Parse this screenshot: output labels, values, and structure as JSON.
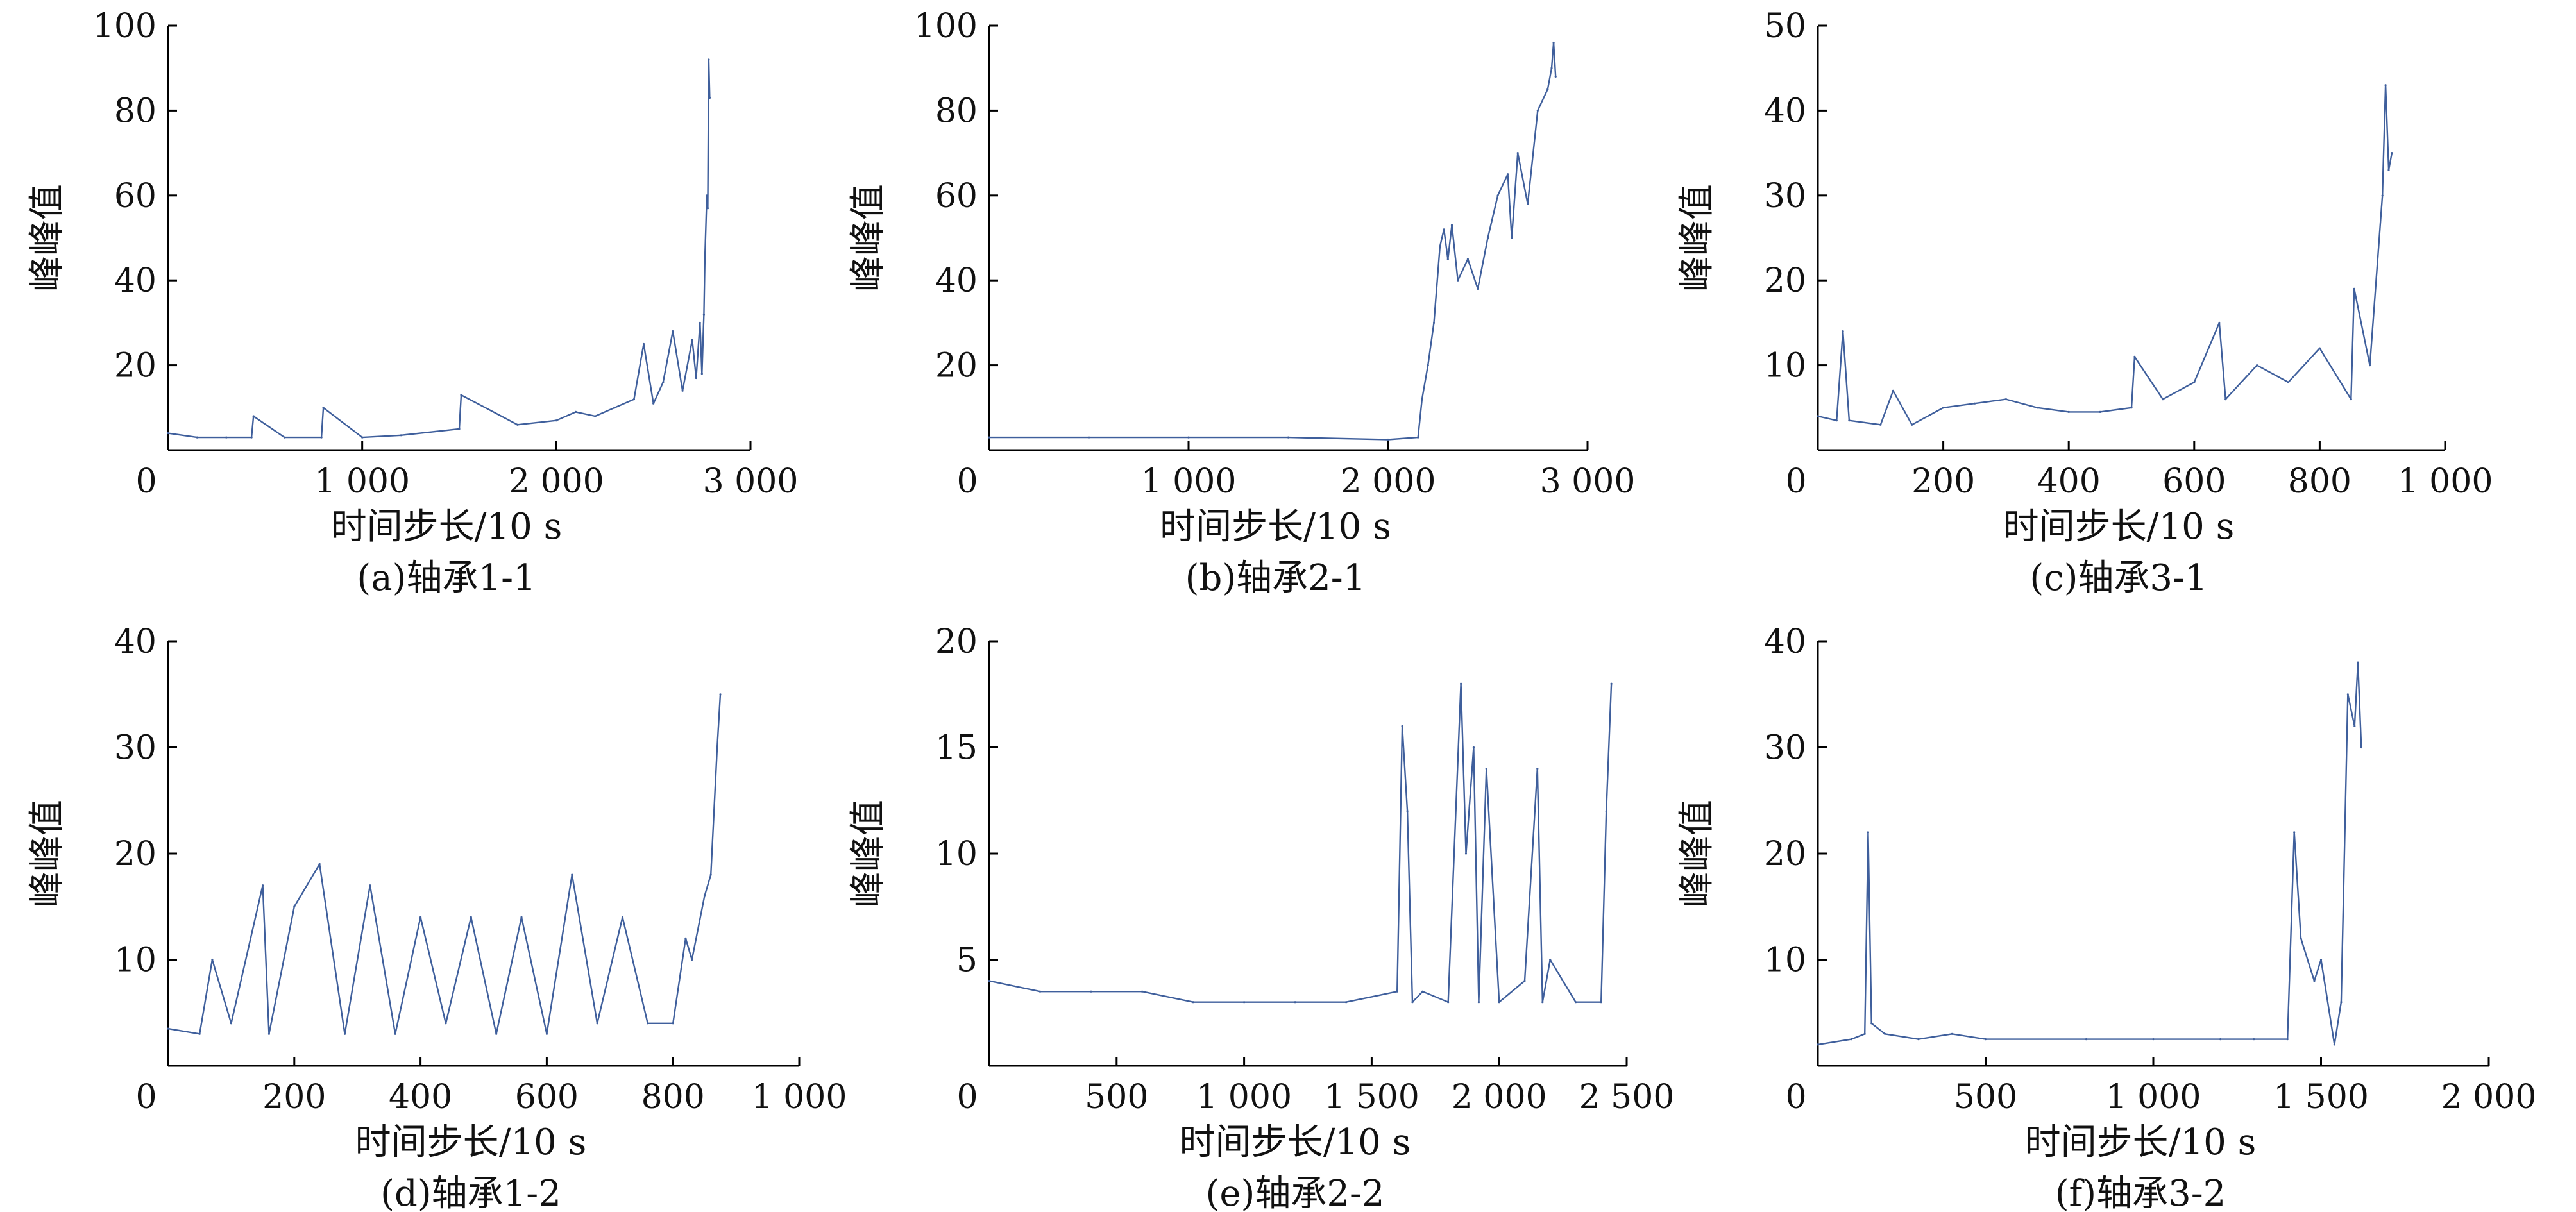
{
  "figure": {
    "panels": [
      {
        "caption": "(a)轴承1-1",
        "xlabel": "时间步长/10 s",
        "ylabel": "峰峰值"
      },
      {
        "caption": "(b)轴承2-1",
        "xlabel": "时间步长/10 s",
        "ylabel": "峰峰值"
      },
      {
        "caption": "(c)轴承3-1",
        "xlabel": "时间步长/10 s",
        "ylabel": "峰峰值"
      },
      {
        "caption": "(d)轴承1-2",
        "xlabel": "时间步长/10 s",
        "ylabel": "峰峰值"
      },
      {
        "caption": "(e)轴承2-2",
        "xlabel": "时间步长/10 s",
        "ylabel": "峰峰值"
      },
      {
        "caption": "(f)轴承3-2",
        "xlabel": "时间步长/10 s",
        "ylabel": "峰峰值"
      }
    ]
  },
  "chart_data": [
    {
      "type": "line",
      "caption": "(a)轴承1-1",
      "xlabel": "时间步长/10 s",
      "ylabel": "峰峰值",
      "xlim": [
        0,
        3000
      ],
      "ylim": [
        0,
        100
      ],
      "xticks": [
        0,
        1000,
        2000,
        3000
      ],
      "xtick_labels": [
        "0",
        "1 000",
        "2 000",
        "3 000"
      ],
      "yticks": [
        20,
        40,
        60,
        80,
        100
      ],
      "ytick_labels": [
        "20",
        "40",
        "60",
        "80",
        "100"
      ],
      "color": "#3f5f9c",
      "series": [
        {
          "x": [
            0,
            150,
            300,
            430,
            440,
            600,
            790,
            800,
            1000,
            1200,
            1500,
            1510,
            1800,
            2000,
            2100,
            2200,
            2300,
            2400,
            2450,
            2500,
            2550,
            2600,
            2650,
            2700,
            2720,
            2740,
            2750,
            2760,
            2765,
            2775,
            2780,
            2785,
            2790
          ],
          "y": [
            4,
            3,
            3,
            3,
            8,
            3,
            3,
            10,
            3,
            3.5,
            5,
            13,
            6,
            7,
            9,
            8,
            10,
            12,
            25,
            11,
            16,
            28,
            14,
            26,
            17,
            30,
            18,
            32,
            45,
            60,
            57,
            92,
            83
          ]
        }
      ]
    },
    {
      "type": "line",
      "caption": "(b)轴承2-1",
      "xlabel": "时间步长/10 s",
      "ylabel": "峰峰值",
      "xlim": [
        0,
        3000
      ],
      "ylim": [
        0,
        100
      ],
      "xticks": [
        0,
        1000,
        2000,
        3000
      ],
      "xtick_labels": [
        "0",
        "1 000",
        "2 000",
        "3 000"
      ],
      "yticks": [
        20,
        40,
        60,
        80,
        100
      ],
      "ytick_labels": [
        "20",
        "40",
        "60",
        "80",
        "100"
      ],
      "color": "#3f5f9c",
      "series": [
        {
          "x": [
            0,
            500,
            1000,
            1500,
            2000,
            2150,
            2170,
            2200,
            2230,
            2260,
            2280,
            2300,
            2320,
            2350,
            2400,
            2450,
            2500,
            2550,
            2600,
            2620,
            2650,
            2700,
            2750,
            2800,
            2820,
            2830,
            2840
          ],
          "y": [
            3,
            3,
            3,
            3,
            2.5,
            3,
            12,
            20,
            30,
            48,
            52,
            45,
            53,
            40,
            45,
            38,
            50,
            60,
            65,
            50,
            70,
            58,
            80,
            85,
            90,
            96,
            88
          ]
        }
      ]
    },
    {
      "type": "line",
      "caption": "(c)轴承3-1",
      "xlabel": "时间步长/10 s",
      "ylabel": "峰峰值",
      "xlim": [
        0,
        1000
      ],
      "ylim": [
        0,
        50
      ],
      "xticks": [
        0,
        200,
        400,
        600,
        800,
        1000
      ],
      "xtick_labels": [
        "0",
        "200",
        "400",
        "600",
        "800",
        "1 000"
      ],
      "yticks": [
        10,
        20,
        30,
        40,
        50
      ],
      "ytick_labels": [
        "10",
        "20",
        "30",
        "40",
        "50"
      ],
      "color": "#3f5f9c",
      "series": [
        {
          "x": [
            0,
            30,
            40,
            50,
            100,
            120,
            150,
            200,
            250,
            300,
            350,
            400,
            450,
            500,
            505,
            550,
            600,
            640,
            650,
            700,
            750,
            800,
            850,
            855,
            880,
            900,
            905,
            910,
            915
          ],
          "y": [
            4,
            3.5,
            14,
            3.5,
            3,
            7,
            3,
            5,
            5.5,
            6,
            5,
            4.5,
            4.5,
            5,
            11,
            6,
            8,
            15,
            6,
            10,
            8,
            12,
            6,
            19,
            10,
            30,
            43,
            33,
            35
          ]
        }
      ]
    },
    {
      "type": "line",
      "caption": "(d)轴承1-2",
      "xlabel": "时间步长/10 s",
      "ylabel": "峰峰值",
      "xlim": [
        0,
        1000
      ],
      "ylim": [
        0,
        40
      ],
      "xticks": [
        0,
        200,
        400,
        600,
        800,
        1000
      ],
      "xtick_labels": [
        "0",
        "200",
        "400",
        "600",
        "800",
        "1 000"
      ],
      "yticks": [
        10,
        20,
        30,
        40
      ],
      "ytick_labels": [
        "10",
        "20",
        "30",
        "40"
      ],
      "color": "#3f5f9c",
      "series": [
        {
          "x": [
            0,
            50,
            70,
            100,
            150,
            160,
            200,
            240,
            280,
            320,
            360,
            400,
            440,
            480,
            520,
            560,
            600,
            640,
            680,
            720,
            760,
            800,
            820,
            830,
            850,
            860,
            870,
            875
          ],
          "y": [
            3.5,
            3,
            10,
            4,
            17,
            3,
            15,
            19,
            3,
            17,
            3,
            14,
            4,
            14,
            3,
            14,
            3,
            18,
            4,
            14,
            4,
            4,
            12,
            10,
            16,
            18,
            30,
            35
          ]
        }
      ]
    },
    {
      "type": "line",
      "caption": "(e)轴承2-2",
      "xlabel": "时间步长/10 s",
      "ylabel": "峰峰值",
      "xlim": [
        0,
        2500
      ],
      "ylim": [
        0,
        20
      ],
      "xticks": [
        0,
        500,
        1000,
        1500,
        2000,
        2500
      ],
      "xtick_labels": [
        "0",
        "500",
        "1 000",
        "1 500",
        "2 000",
        "2 500"
      ],
      "yticks": [
        5,
        10,
        15,
        20
      ],
      "ytick_labels": [
        "5",
        "10",
        "15",
        "20"
      ],
      "color": "#3f5f9c",
      "series": [
        {
          "x": [
            0,
            200,
            400,
            600,
            800,
            1000,
            1200,
            1400,
            1600,
            1620,
            1640,
            1660,
            1700,
            1800,
            1850,
            1870,
            1900,
            1920,
            1950,
            2000,
            2100,
            2150,
            2170,
            2200,
            2300,
            2400,
            2420,
            2440
          ],
          "y": [
            4,
            3.5,
            3.5,
            3.5,
            3,
            3,
            3,
            3,
            3.5,
            16,
            12,
            3,
            3.5,
            3,
            18,
            10,
            15,
            3,
            14,
            3,
            4,
            14,
            3,
            5,
            3,
            3,
            12,
            18
          ]
        }
      ]
    },
    {
      "type": "line",
      "caption": "(f)轴承3-2",
      "xlabel": "时间步长/10 s",
      "ylabel": "峰峰值",
      "xlim": [
        0,
        2000
      ],
      "ylim": [
        0,
        40
      ],
      "xticks": [
        0,
        500,
        1000,
        1500,
        2000
      ],
      "xtick_labels": [
        "0",
        "500",
        "1 000",
        "1 500",
        "2 000"
      ],
      "yticks": [
        10,
        20,
        30,
        40
      ],
      "ytick_labels": [
        "10",
        "20",
        "30",
        "40"
      ],
      "color": "#3f5f9c",
      "series": [
        {
          "x": [
            0,
            100,
            140,
            150,
            160,
            200,
            300,
            400,
            500,
            800,
            1000,
            1200,
            1300,
            1400,
            1420,
            1440,
            1480,
            1500,
            1540,
            1560,
            1580,
            1600,
            1610,
            1620
          ],
          "y": [
            2,
            2.5,
            3,
            22,
            4,
            3,
            2.5,
            3,
            2.5,
            2.5,
            2.5,
            2.5,
            2.5,
            2.5,
            22,
            12,
            8,
            10,
            2,
            6,
            35,
            32,
            38,
            30
          ]
        }
      ]
    }
  ]
}
